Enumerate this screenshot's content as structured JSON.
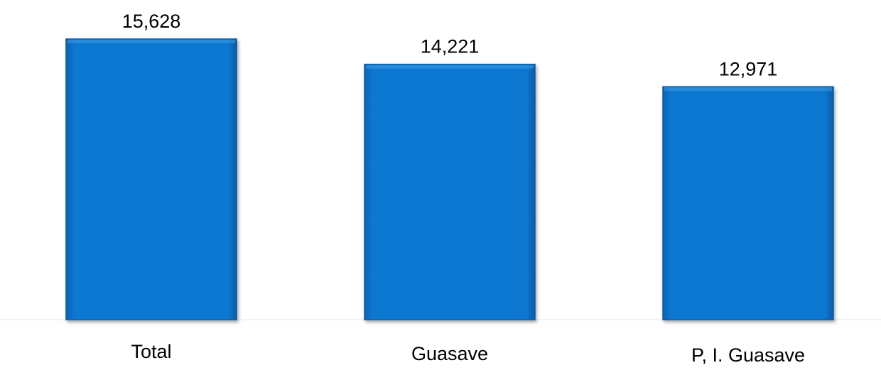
{
  "chart_data": {
    "type": "bar",
    "categories": [
      "Total",
      "Guasave",
      "P, I. Guasave"
    ],
    "values": [
      15628,
      14221,
      12971
    ],
    "value_labels": [
      "15,628",
      "14,221",
      "12,971"
    ],
    "title": "",
    "xlabel": "",
    "ylabel": "",
    "ylim": [
      0,
      15628
    ],
    "grid": false,
    "legend": "none",
    "bar_color": "#0a78d2",
    "bar_edge_color": "#075aa3"
  }
}
